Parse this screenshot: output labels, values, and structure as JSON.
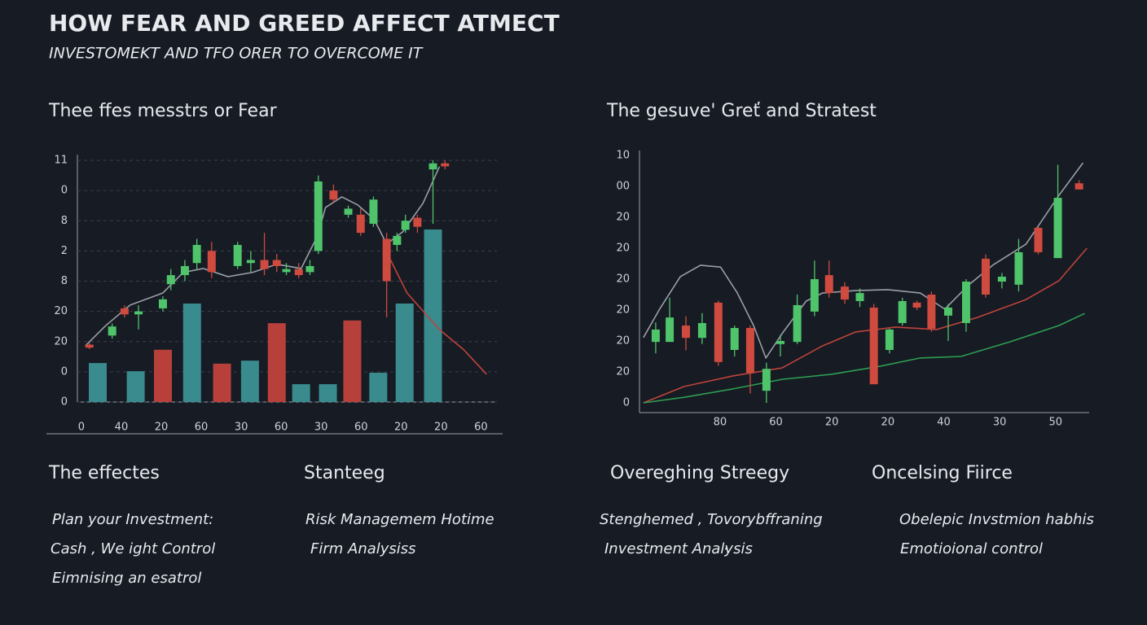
{
  "header": {
    "title": "HOW FEAR AND GREED AFFECT ATMECT",
    "subtitle": "INVESTOMEKT AND TFO ORER TO OVERCOME IT"
  },
  "chart_data": [
    {
      "type": "candlestick",
      "title": "Thee ffes messtrs or Fear",
      "xlim": [
        -0.1,
        10.4
      ],
      "ylim": [
        0,
        8
      ],
      "xticks": [
        0,
        {
          "value": 1,
          "label": "40"
        },
        {
          "value": 2,
          "label": "20"
        },
        {
          "value": 3,
          "label": "60"
        },
        {
          "value": 4,
          "label": "30"
        },
        {
          "value": 5,
          "label": "60"
        },
        {
          "value": 6,
          "label": "30"
        },
        {
          "value": 7,
          "label": "60"
        },
        {
          "value": 8,
          "label": "20"
        },
        {
          "value": 9,
          "label": "20"
        },
        {
          "value": 10,
          "label": "60"
        }
      ],
      "yticks": [
        0,
        {
          "value": 1,
          "label": "0"
        },
        {
          "value": 2,
          "label": "20"
        },
        {
          "value": 3,
          "label": "20"
        },
        {
          "value": 4,
          "label": "8"
        },
        {
          "value": 5,
          "label": "2"
        },
        {
          "value": 6,
          "label": "8"
        },
        {
          "value": 7,
          "label": "0"
        },
        {
          "value": 8,
          "label": "11"
        }
      ],
      "grid": true,
      "up_color": "#4fc46a",
      "down_color": "#cf4a3f",
      "bars": {
        "x": [
          0.41,
          1.36,
          2.04,
          2.77,
          3.52,
          4.22,
          4.89,
          5.5,
          6.17,
          6.78,
          7.43,
          8.09,
          8.8
        ],
        "values": [
          1.29,
          1.02,
          1.73,
          3.26,
          1.27,
          1.37,
          2.61,
          0.59,
          0.59,
          2.7,
          0.97,
          3.26,
          5.71
        ],
        "colors": [
          "#3a8b8e",
          "#3a8b8e",
          "#b8403b",
          "#3a8b8e",
          "#b8403b",
          "#3a8b8e",
          "#b8403b",
          "#3a8b8e",
          "#3a8b8e",
          "#b8403b",
          "#3a8b8e",
          "#3a8b8e",
          "#3a8b8e"
        ]
      },
      "lines": [
        {
          "color": "#9a9ea6",
          "x": [
            0.1,
            0.61,
            1.22,
            2.04,
            2.55,
            3.05,
            3.67,
            4.28,
            4.89,
            5.5,
            5.91,
            6.11,
            6.52,
            6.92,
            7.33,
            7.64,
            8.04,
            8.55,
            8.96
          ],
          "values": [
            1.86,
            2.53,
            3.21,
            3.61,
            4.29,
            4.42,
            4.15,
            4.29,
            4.56,
            4.42,
            5.5,
            6.44,
            6.79,
            6.52,
            6.04,
            5.23,
            5.63,
            6.58,
            7.79
          ]
        },
        {
          "color": "#c0433b",
          "x": [
            7.64,
            8.15,
            8.96,
            9.57,
            10.14
          ],
          "values": [
            4.96,
            3.61,
            2.4,
            1.73,
            0.92
          ]
        }
      ],
      "candles": {
        "x": [
          0.2,
          0.77,
          1.08,
          1.43,
          2.04,
          2.24,
          2.59,
          2.89,
          3.26,
          3.91,
          4.24,
          4.58,
          4.89,
          5.13,
          5.44,
          5.72,
          5.93,
          6.31,
          6.68,
          6.99,
          7.31,
          7.64,
          7.9,
          8.11,
          8.41,
          8.8,
          9.1
        ],
        "open": [
          1.9,
          2.2,
          3.1,
          2.9,
          3.1,
          3.9,
          4.2,
          4.6,
          5.0,
          4.5,
          4.6,
          4.7,
          4.7,
          4.3,
          4.4,
          4.3,
          5.0,
          7.0,
          6.2,
          6.2,
          5.9,
          5.4,
          5.2,
          5.7,
          6.1,
          7.7,
          7.9
        ],
        "high": [
          1.95,
          2.6,
          3.2,
          3.2,
          3.5,
          4.4,
          4.7,
          5.4,
          5.3,
          5.3,
          5.0,
          5.6,
          4.9,
          4.6,
          4.6,
          4.7,
          7.5,
          7.2,
          6.5,
          6.4,
          6.8,
          5.6,
          5.6,
          6.2,
          6.2,
          8.0,
          8.0
        ],
        "low": [
          1.75,
          2.1,
          2.8,
          2.4,
          3.0,
          3.7,
          4.0,
          4.4,
          4.1,
          4.4,
          4.3,
          4.2,
          4.3,
          4.2,
          4.1,
          4.2,
          4.9,
          6.6,
          6.1,
          5.5,
          5.8,
          2.8,
          5.0,
          5.6,
          5.6,
          5.9,
          7.7
        ],
        "close": [
          1.8,
          2.5,
          2.9,
          3.0,
          3.4,
          4.2,
          4.5,
          5.2,
          4.3,
          5.2,
          4.7,
          4.4,
          4.5,
          4.4,
          4.2,
          4.5,
          7.3,
          6.7,
          6.4,
          5.6,
          6.7,
          4.0,
          5.5,
          6.0,
          5.8,
          7.9,
          7.8
        ]
      }
    },
    {
      "type": "candlestick",
      "title": "The gesuve' Greť and Stratest",
      "xlim": [
        -1.44,
        6.6
      ],
      "ylim": [
        0,
        8
      ],
      "xticks": [
        {
          "value": 0,
          "label": "80"
        },
        {
          "value": 1,
          "label": "60"
        },
        {
          "value": 2,
          "label": "20"
        },
        {
          "value": 3,
          "label": "20"
        },
        {
          "value": 4,
          "label": "40"
        },
        {
          "value": 5,
          "label": "30"
        },
        {
          "value": 6,
          "label": "50"
        }
      ],
      "yticks": [
        0,
        {
          "value": 1,
          "label": "20"
        },
        {
          "value": 2,
          "label": "20"
        },
        {
          "value": 3,
          "label": "20"
        },
        {
          "value": 4,
          "label": "20"
        },
        {
          "value": 5,
          "label": "20"
        },
        {
          "value": 6,
          "label": "20"
        },
        {
          "value": 7,
          "label": "00"
        },
        {
          "value": 8,
          "label": "10"
        }
      ],
      "grid": false,
      "up_color": "#4fc46a",
      "down_color": "#cf4a3f",
      "lines": [
        {
          "color": "#9a9ea6",
          "x": [
            -1.37,
            -1.08,
            -0.71,
            -0.35,
            0.01,
            0.31,
            0.6,
            0.82,
            1.11,
            1.54,
            1.83,
            2.42,
            3.0,
            3.58,
            4.02,
            4.45,
            4.89,
            5.47,
            6.06,
            6.49
          ],
          "values": [
            2.11,
            3.03,
            4.08,
            4.45,
            4.39,
            3.55,
            2.5,
            1.45,
            2.24,
            3.29,
            3.55,
            3.63,
            3.66,
            3.55,
            3.03,
            3.82,
            4.47,
            5.13,
            6.71,
            7.76
          ]
        },
        {
          "color": "#c0433b",
          "x": [
            -1.37,
            -0.64,
            0.23,
            1.11,
            1.83,
            2.42,
            3.14,
            3.87,
            4.6,
            5.47,
            6.06,
            6.56
          ],
          "values": [
            0,
            0.53,
            0.87,
            1.13,
            1.84,
            2.29,
            2.45,
            2.37,
            2.76,
            3.34,
            3.95,
            5.0
          ]
        },
        {
          "color": "#2e9e52",
          "x": [
            -1.37,
            -0.64,
            0.23,
            1.11,
            1.98,
            2.85,
            3.58,
            4.31,
            5.18,
            6.06,
            6.52
          ],
          "values": [
            0,
            0.18,
            0.45,
            0.76,
            0.92,
            1.18,
            1.45,
            1.5,
            1.97,
            2.5,
            2.89
          ]
        }
      ],
      "candles": {
        "x": [
          -1.15,
          -0.9,
          -0.61,
          -0.32,
          -0.03,
          0.26,
          0.54,
          0.83,
          1.08,
          1.38,
          1.69,
          1.95,
          2.23,
          2.5,
          2.75,
          3.03,
          3.26,
          3.52,
          3.78,
          4.08,
          4.4,
          4.75,
          5.04,
          5.34,
          5.69,
          6.04,
          6.42
        ],
        "open": [
          1.97,
          1.97,
          2.5,
          2.1,
          3.24,
          1.71,
          2.42,
          0.39,
          1.9,
          1.97,
          2.95,
          4.13,
          3.76,
          3.29,
          3.08,
          1.71,
          2.58,
          3.24,
          3.5,
          2.82,
          2.58,
          4.66,
          3.92,
          3.82,
          5.66,
          4.68,
          7.1
        ],
        "high": [
          2.6,
          3.4,
          2.8,
          2.9,
          3.3,
          2.5,
          2.5,
          1.3,
          2.2,
          3.5,
          4.6,
          4.6,
          3.9,
          3.7,
          3.2,
          2.4,
          3.4,
          3.3,
          3.6,
          3.2,
          4.0,
          4.8,
          4.2,
          5.3,
          5.7,
          7.7,
          7.2
        ],
        "low": [
          1.6,
          1.97,
          1.7,
          1.9,
          1.2,
          1.5,
          0.3,
          0,
          1.5,
          1.9,
          2.8,
          3.4,
          3.2,
          3.1,
          0.6,
          1.6,
          2.5,
          3.0,
          2.3,
          2.0,
          2.3,
          3.4,
          3.7,
          3.6,
          4.8,
          4.7,
          6.9
        ],
        "close": [
          2.37,
          2.76,
          2.1,
          2.58,
          1.32,
          2.42,
          0.97,
          1.1,
          2.0,
          3.16,
          4.0,
          3.55,
          3.34,
          3.55,
          0.6,
          2.37,
          3.29,
          3.08,
          2.4,
          3.08,
          3.92,
          3.5,
          4.08,
          4.87,
          4.87,
          6.63,
          6.9
        ]
      }
    }
  ],
  "sections": [
    {
      "heading": "The effectes",
      "items": [
        "Plan your Investment:",
        "Cash , We ight Control",
        "Eimnising an esatrol"
      ]
    },
    {
      "heading": "Stanteeg",
      "items": [
        "Risk Managemem Hotime",
        "Firm Analysiss"
      ]
    },
    {
      "heading": "Overeghing Streegy",
      "items": [
        "Stenghemed , Tovorybffraning",
        "Investment Anaŀysis"
      ]
    },
    {
      "heading": "Oncelsing Fiirce",
      "items": [
        "Obelepic Invstmion habhis",
        "Emotioional control"
      ]
    }
  ]
}
